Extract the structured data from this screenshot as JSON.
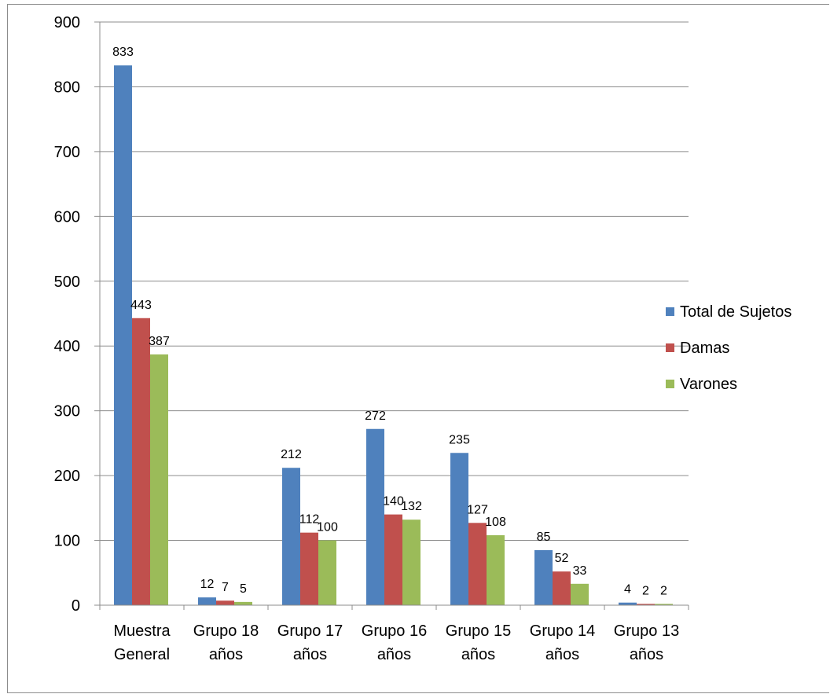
{
  "chart_data": {
    "type": "bar",
    "categories": [
      [
        "Muestra",
        "General"
      ],
      [
        "Grupo 18",
        "años"
      ],
      [
        "Grupo 17",
        "años"
      ],
      [
        "Grupo 16",
        "años"
      ],
      [
        "Grupo 15",
        "años"
      ],
      [
        "Grupo 14",
        "años"
      ],
      [
        "Grupo 13",
        "años"
      ]
    ],
    "series": [
      {
        "name": "Total de Sujetos",
        "color": "#4F81BD",
        "values": [
          833,
          12,
          212,
          272,
          235,
          85,
          4
        ],
        "labels": [
          "833",
          "12",
          "212",
          "272",
          "235",
          "85",
          "4"
        ]
      },
      {
        "name": "Damas",
        "color": "#C0504D",
        "values": [
          443,
          7,
          112,
          140,
          127,
          52,
          2
        ],
        "labels": [
          "443",
          "7",
          "112",
          "140",
          "127",
          "52",
          "2"
        ]
      },
      {
        "name": "Varones",
        "color": "#9BBB59",
        "values": [
          387,
          5,
          100,
          132,
          108,
          33,
          2
        ],
        "labels": [
          "387",
          "5",
          "100",
          "132",
          "108",
          "33",
          "2"
        ]
      }
    ],
    "ylim": [
      0,
      900
    ],
    "yticks": [
      0,
      100,
      200,
      300,
      400,
      500,
      600,
      700,
      800,
      900
    ],
    "ytick_labels": [
      "0",
      "100",
      "200",
      "300",
      "400",
      "500",
      "600",
      "700",
      "800",
      "900"
    ],
    "grid": true,
    "legend_position": "right"
  }
}
